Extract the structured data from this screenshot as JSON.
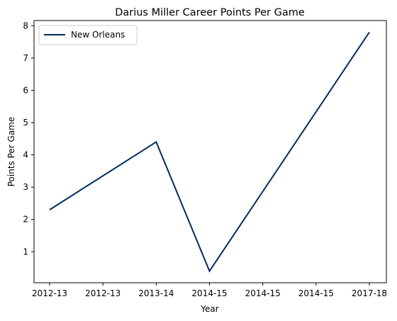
{
  "chart_data": {
    "type": "line",
    "title": "Darius Miller Career Points Per Game",
    "xlabel": "Year",
    "ylabel": "Points Per Game",
    "x_tick_labels": [
      "2012-13",
      "2012-13",
      "2013-14",
      "2014-15",
      "2014-15",
      "2014-15",
      "2017-18"
    ],
    "y_ticks": [
      1,
      2,
      3,
      4,
      5,
      6,
      7,
      8
    ],
    "ylim": [
      0.04,
      8.16
    ],
    "grid": false,
    "legend_position": "top-left",
    "series": [
      {
        "name": "New Orleans",
        "color": "#002b5c",
        "points": [
          {
            "x": "2012-13",
            "y": 2.3
          },
          {
            "x": "2013-14",
            "y": 4.4
          },
          {
            "x": "2014-15",
            "y": 0.4
          },
          {
            "x": "2017-18",
            "y": 7.8
          }
        ]
      }
    ]
  }
}
